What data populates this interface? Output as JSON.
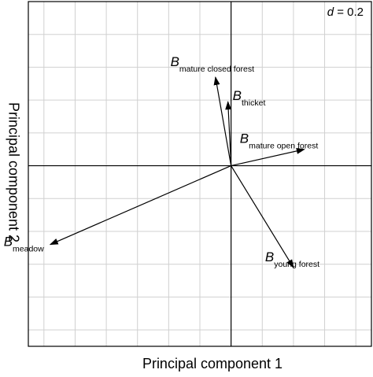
{
  "chart_data": {
    "type": "biplot",
    "scale_label": {
      "var": "d",
      "eq": " = 0.2"
    },
    "xlabel": "Principal component 1",
    "ylabel": "Principal component 2",
    "grid": true,
    "xlim": [
      -1.3,
      0.9
    ],
    "ylim": [
      -1.1,
      1.0
    ],
    "grid_step": 0.2,
    "vectors": [
      {
        "symbol": "B",
        "sub": "mature closed forest",
        "x": -0.1,
        "y": 0.54
      },
      {
        "symbol": "B",
        "sub": "thicket",
        "x": -0.02,
        "y": 0.39
      },
      {
        "symbol": "B",
        "sub": "mature open forest",
        "x": 0.47,
        "y": 0.1
      },
      {
        "symbol": "B",
        "sub": "meadow",
        "x": -1.16,
        "y": -0.48
      },
      {
        "symbol": "B",
        "sub": "young forest",
        "x": 0.4,
        "y": -0.62
      }
    ]
  }
}
